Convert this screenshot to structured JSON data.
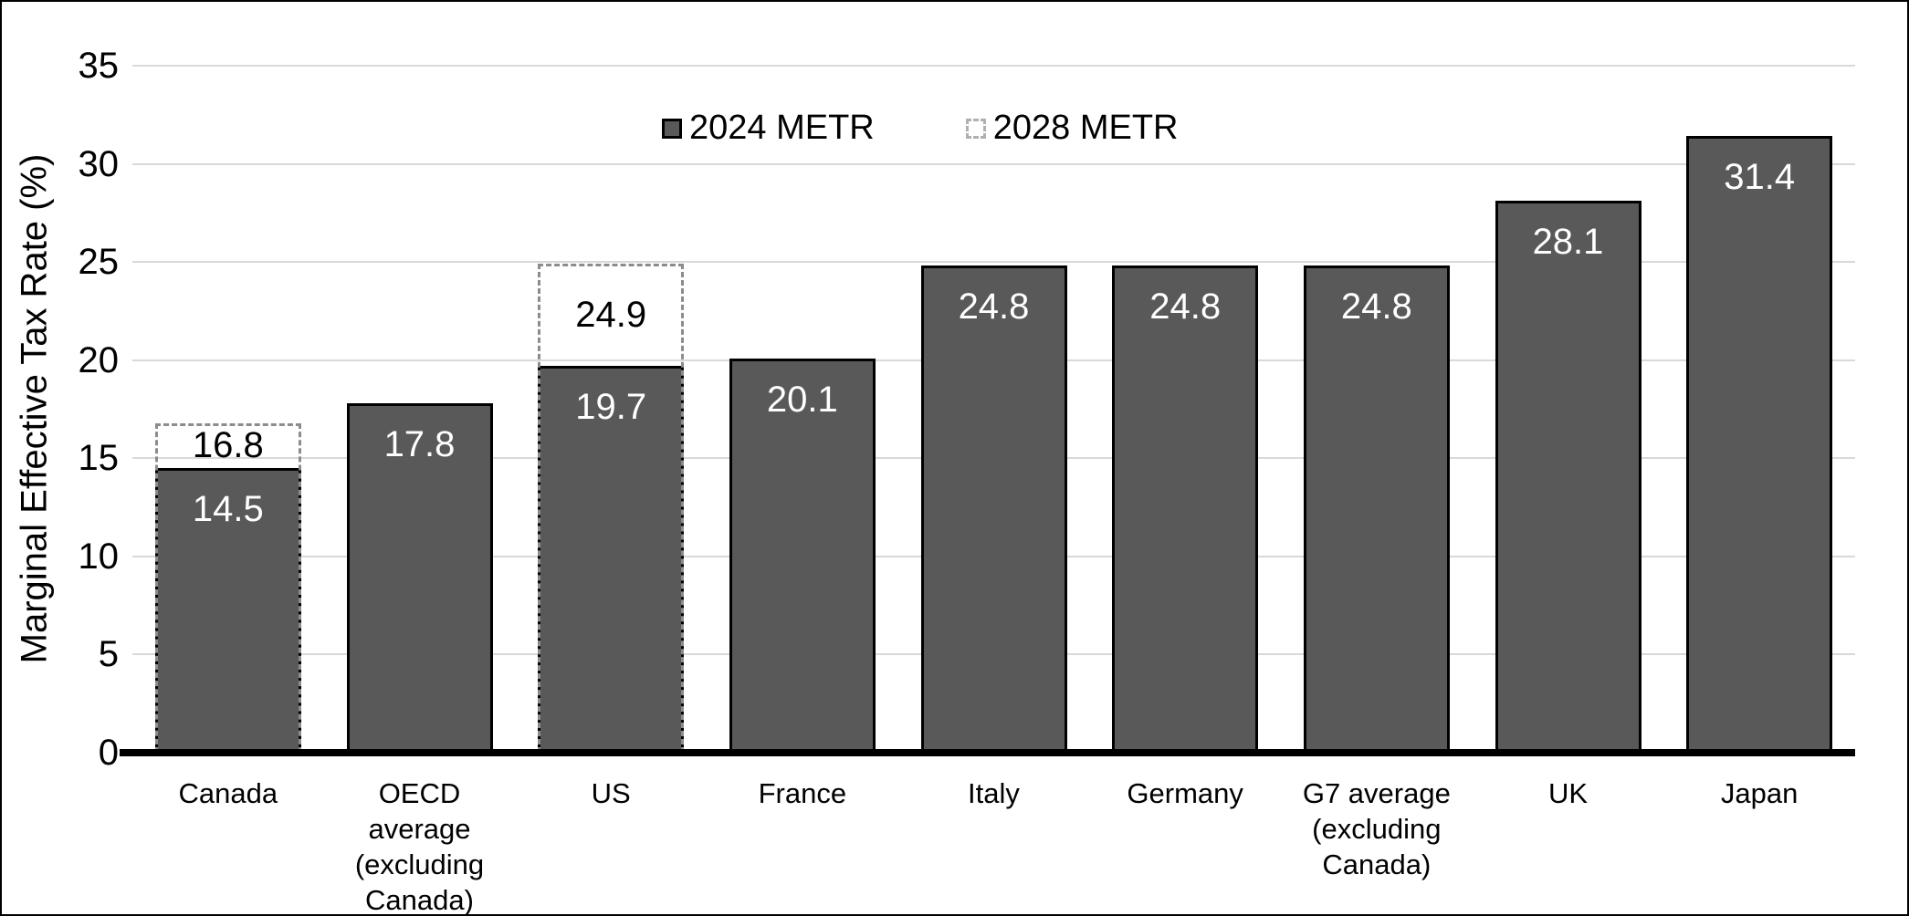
{
  "chart_data": {
    "type": "bar",
    "ylabel": "Marginal Effective Tax Rate (%)",
    "xlabel": "",
    "ylim": [
      0,
      35
    ],
    "yticks": [
      0,
      5,
      10,
      15,
      20,
      25,
      30,
      35
    ],
    "grid": true,
    "legend_position": "top-center",
    "categories": [
      "Canada",
      "OECD\naverage\n(excluding\nCanada)",
      "US",
      "France",
      "Italy",
      "Germany",
      "G7 average\n(excluding\nCanada)",
      "UK",
      "Japan"
    ],
    "series": [
      {
        "name": "2024 METR",
        "style": "solid-bar",
        "values": [
          14.5,
          17.8,
          19.7,
          20.1,
          24.8,
          24.8,
          24.8,
          28.1,
          31.4
        ]
      },
      {
        "name": "2028 METR",
        "style": "dashed-outline-bar",
        "values": [
          16.8,
          null,
          24.9,
          null,
          null,
          null,
          null,
          null,
          null
        ]
      }
    ],
    "colors": {
      "bar_fill": "#595959",
      "bar_border": "#000000",
      "outline_dash": "#8c8c8c",
      "gridline": "#d9d9d9",
      "axis_line": "#000000",
      "bar_label": "#ffffff",
      "outline_label": "#000000"
    }
  }
}
